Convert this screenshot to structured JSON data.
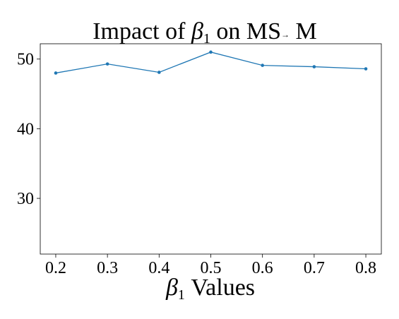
{
  "chart_data": {
    "type": "line",
    "title": {
      "prefix": "Impact of ",
      "symbol": "β",
      "subscript": "1",
      "middle": " on MS",
      "arrow": "→",
      "suffix": " M"
    },
    "xlabel": {
      "symbol": "β",
      "subscript": "1",
      "suffix": " Values"
    },
    "ylabel": "",
    "x": [
      0.2,
      0.3,
      0.4,
      0.5,
      0.6,
      0.7,
      0.8
    ],
    "x_tick_labels": [
      "0.2",
      "0.3",
      "0.4",
      "0.5",
      "0.6",
      "0.7",
      "0.8"
    ],
    "y_ticks": [
      30,
      40,
      50
    ],
    "y_tick_labels": [
      "30",
      "40",
      "50"
    ],
    "xlim": [
      0.17,
      0.83
    ],
    "ylim": [
      22,
      52.2
    ],
    "series": [
      {
        "values": [
          48.0,
          49.3,
          48.1,
          51.0,
          49.1,
          48.9,
          48.6
        ],
        "color": "#1f77b4"
      }
    ],
    "grid": false,
    "legend": "none"
  }
}
